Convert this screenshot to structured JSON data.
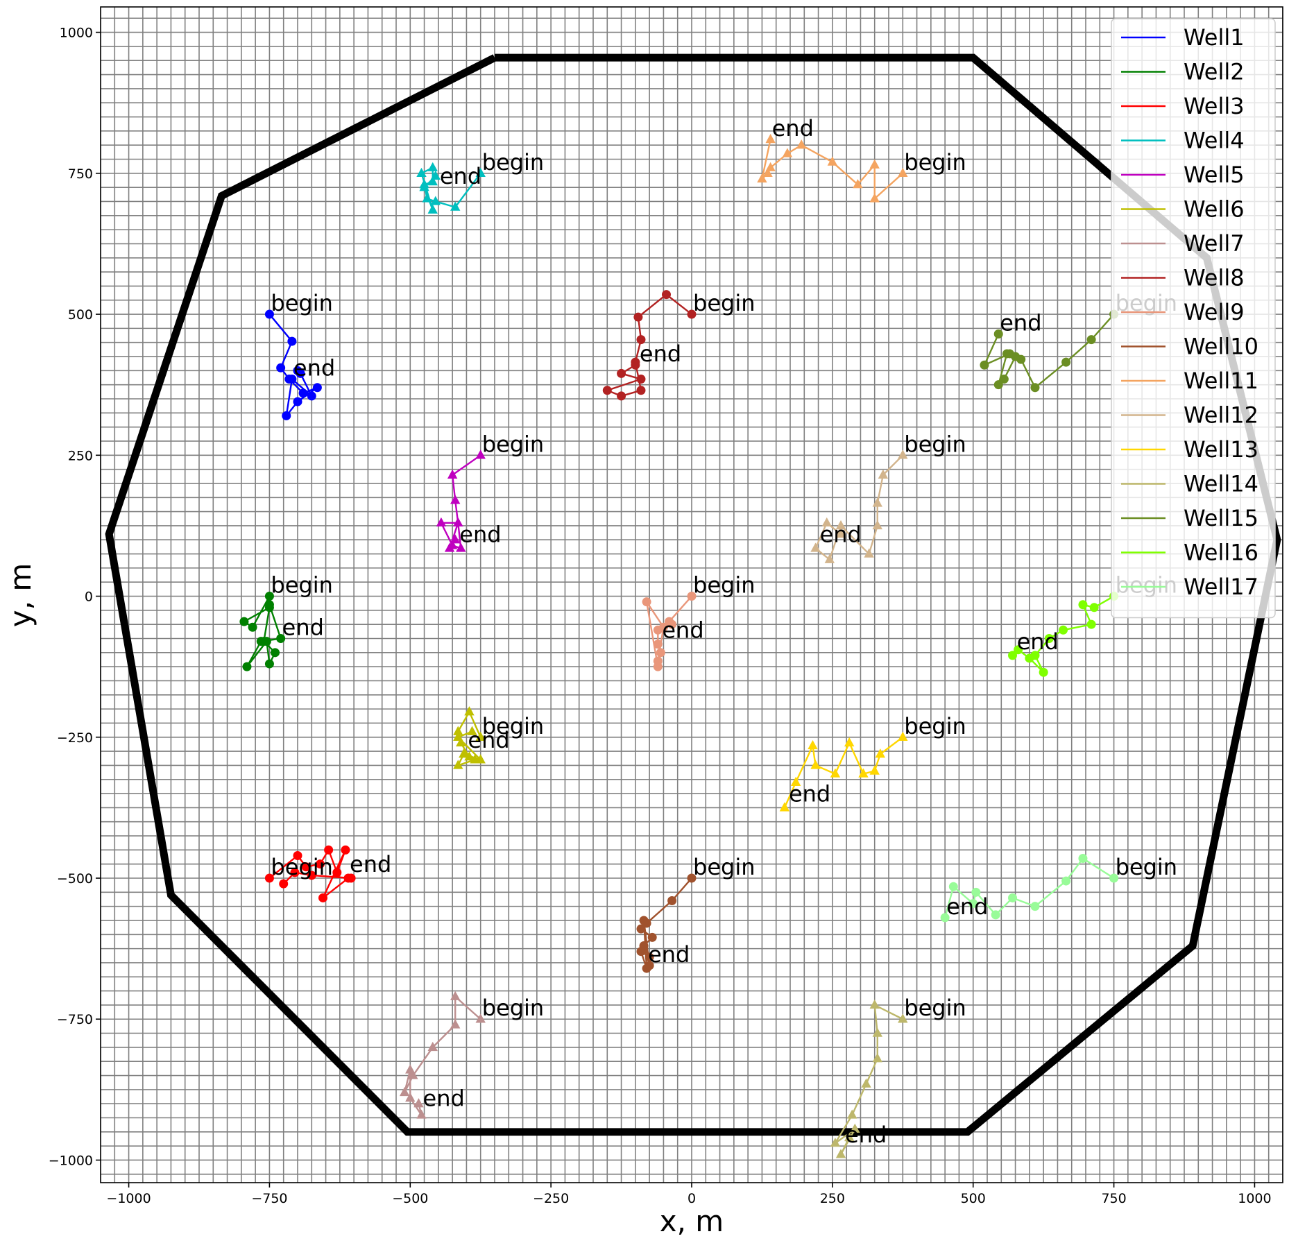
{
  "chart_data": {
    "type": "line",
    "title": "",
    "xlabel": "x, m",
    "ylabel": "y, m",
    "xlim": [
      -1050,
      1050
    ],
    "ylim": [
      -1040,
      1045
    ],
    "xticks": [
      -1000,
      -750,
      -500,
      -250,
      0,
      250,
      500,
      750,
      1000
    ],
    "yticks": [
      -1000,
      -750,
      -500,
      -250,
      0,
      250,
      500,
      750,
      1000
    ],
    "xtick_labels": [
      "−1000",
      "−750",
      "−500",
      "−250",
      "0",
      "250",
      "500",
      "750",
      "1000"
    ],
    "ytick_labels": [
      "−1000",
      "−750",
      "−500",
      "−250",
      "0",
      "250",
      "500",
      "750",
      "1000"
    ],
    "grid": true,
    "legend_position": "top-right",
    "boundary": {
      "color": "#000000",
      "x": [
        -350,
        500,
        915,
        1040,
        890,
        490,
        -505,
        -925,
        -1035,
        -835,
        -350
      ],
      "y": [
        955,
        955,
        600,
        100,
        -620,
        -950,
        -950,
        -530,
        110,
        710,
        955
      ]
    },
    "series": [
      {
        "name": "Well1",
        "color": "#0000ff",
        "marker": "circle",
        "x": [
          -750,
          -710,
          -730,
          -715,
          -690,
          -665,
          -700,
          -720,
          -710,
          -675,
          -695,
          -700
        ],
        "y": [
          500,
          452,
          405,
          385,
          360,
          370,
          345,
          320,
          385,
          355,
          395,
          400
        ],
        "begin_label": "begin",
        "end_label": "end",
        "begin_xy": [
          -750,
          500
        ],
        "end_xy": [
          -710,
          385
        ]
      },
      {
        "name": "Well2",
        "color": "#008000",
        "marker": "circle",
        "x": [
          -750,
          -780,
          -795,
          -750,
          -760,
          -740,
          -750,
          -755,
          -790,
          -765,
          -730,
          -750
        ],
        "y": [
          0,
          -55,
          -45,
          -20,
          -80,
          -100,
          -120,
          -80,
          -125,
          -80,
          -75,
          -15
        ],
        "begin_label": "begin",
        "end_label": "end",
        "begin_xy": [
          -750,
          0
        ],
        "end_xy": [
          -730,
          -75
        ]
      },
      {
        "name": "Well3",
        "color": "#ff0000",
        "marker": "circle",
        "x": [
          -750,
          -700,
          -685,
          -660,
          -645,
          -630,
          -615,
          -655,
          -610,
          -605,
          -675,
          -705,
          -725
        ],
        "y": [
          -500,
          -460,
          -480,
          -475,
          -450,
          -490,
          -450,
          -535,
          -500,
          -500,
          -495,
          -490,
          -510
        ],
        "begin_label": "begin",
        "end_label": "end",
        "begin_xy": [
          -750,
          -500
        ],
        "end_xy": [
          -610,
          -495
        ]
      },
      {
        "name": "Well4",
        "color": "#00bfbf",
        "marker": "triangle",
        "x": [
          -375,
          -420,
          -455,
          -470,
          -475,
          -460,
          -460,
          -480,
          -460,
          -475,
          -455
        ],
        "y": [
          750,
          690,
          700,
          705,
          730,
          735,
          760,
          750,
          685,
          725,
          745
        ],
        "begin_label": "begin",
        "end_label": "end",
        "begin_xy": [
          -375,
          750
        ],
        "end_xy": [
          -450,
          725
        ]
      },
      {
        "name": "Well5",
        "color": "#bf00bf",
        "marker": "triangle",
        "x": [
          -375,
          -425,
          -420,
          -415,
          -445,
          -425,
          -410,
          -415,
          -430,
          -420
        ],
        "y": [
          250,
          215,
          170,
          130,
          130,
          90,
          85,
          130,
          85,
          100
        ],
        "begin_label": "begin",
        "end_label": "end",
        "begin_xy": [
          -375,
          250
        ],
        "end_xy": [
          -415,
          90
        ]
      },
      {
        "name": "Well6",
        "color": "#bfbf00",
        "marker": "triangle",
        "x": [
          -375,
          -395,
          -415,
          -410,
          -395,
          -385,
          -415,
          -405,
          -375,
          -415,
          -390
        ],
        "y": [
          -250,
          -205,
          -240,
          -260,
          -285,
          -290,
          -300,
          -280,
          -290,
          -250,
          -240
        ],
        "begin_label": "begin",
        "end_label": "end",
        "begin_xy": [
          -375,
          -250
        ],
        "end_xy": [
          -400,
          -275
        ]
      },
      {
        "name": "Well7",
        "color": "#bc8f8f",
        "marker": "triangle",
        "x": [
          -375,
          -420,
          -420,
          -460,
          -495,
          -510,
          -500,
          -500,
          -480,
          -485
        ],
        "y": [
          -750,
          -710,
          -760,
          -800,
          -850,
          -880,
          -840,
          -890,
          -920,
          -900
        ],
        "begin_label": "begin",
        "end_label": "end",
        "begin_xy": [
          -375,
          -750
        ],
        "end_xy": [
          -480,
          -910
        ]
      },
      {
        "name": "Well8",
        "color": "#b22222",
        "marker": "circle",
        "x": [
          0,
          -45,
          -95,
          -90,
          -100,
          -90,
          -125,
          -150,
          -90,
          -125,
          -100
        ],
        "y": [
          500,
          535,
          495,
          455,
          415,
          365,
          355,
          365,
          385,
          395,
          410
        ],
        "begin_label": "begin",
        "end_label": "end",
        "begin_xy": [
          0,
          500
        ],
        "end_xy": [
          -95,
          410
        ]
      },
      {
        "name": "Well9",
        "color": "#e9967a",
        "marker": "circle",
        "x": [
          0,
          -40,
          -35,
          -60,
          -60,
          -55,
          -60,
          -80,
          -50,
          -60
        ],
        "y": [
          0,
          -45,
          -50,
          -60,
          -85,
          -100,
          -125,
          -10,
          -55,
          -115
        ],
        "begin_label": "begin",
        "end_label": "end",
        "begin_xy": [
          0,
          0
        ],
        "end_xy": [
          -55,
          -80
        ]
      },
      {
        "name": "Well10",
        "color": "#a0522d",
        "marker": "circle",
        "x": [
          0,
          -35,
          -80,
          -90,
          -70,
          -85,
          -75,
          -90,
          -80,
          -85,
          -75
        ],
        "y": [
          -500,
          -540,
          -580,
          -590,
          -605,
          -620,
          -640,
          -630,
          -660,
          -575,
          -655
        ],
        "begin_label": "begin",
        "end_label": "end",
        "begin_xy": [
          0,
          -500
        ],
        "end_xy": [
          -80,
          -655
        ]
      },
      {
        "name": "Well11",
        "color": "#f4a460",
        "marker": "triangle",
        "x": [
          375,
          325,
          325,
          295,
          250,
          195,
          170,
          140,
          135,
          125,
          140
        ],
        "y": [
          750,
          705,
          765,
          730,
          770,
          800,
          785,
          760,
          750,
          740,
          810
        ],
        "begin_label": "begin",
        "end_label": "end",
        "begin_xy": [
          375,
          750
        ],
        "end_xy": [
          140,
          810
        ]
      },
      {
        "name": "Well12",
        "color": "#d2b48c",
        "marker": "triangle",
        "x": [
          375,
          340,
          330,
          330,
          315,
          265,
          245,
          220,
          240,
          265
        ],
        "y": [
          250,
          215,
          165,
          125,
          75,
          125,
          65,
          85,
          130,
          110
        ],
        "begin_label": "begin",
        "end_label": "end",
        "begin_xy": [
          375,
          250
        ],
        "end_xy": [
          225,
          90
        ]
      },
      {
        "name": "Well13",
        "color": "#ffd700",
        "marker": "triangle",
        "x": [
          375,
          335,
          325,
          305,
          280,
          255,
          220,
          215,
          185,
          165
        ],
        "y": [
          -250,
          -280,
          -310,
          -315,
          -260,
          -315,
          -300,
          -265,
          -330,
          -375
        ],
        "begin_label": "begin",
        "end_label": "end",
        "begin_xy": [
          375,
          -250
        ],
        "end_xy": [
          170,
          -370
        ]
      },
      {
        "name": "Well14",
        "color": "#bdb76b",
        "marker": "triangle",
        "x": [
          375,
          325,
          330,
          330,
          310,
          285,
          255,
          290,
          265,
          280
        ],
        "y": [
          -750,
          -725,
          -775,
          -820,
          -865,
          -920,
          -970,
          -945,
          -990,
          -960
        ],
        "begin_label": "begin",
        "end_label": "end",
        "begin_xy": [
          375,
          -750
        ],
        "end_xy": [
          270,
          -975
        ]
      },
      {
        "name": "Well15",
        "color": "#6b8e23",
        "marker": "circle",
        "x": [
          750,
          710,
          665,
          610,
          585,
          560,
          545,
          555,
          575,
          565,
          520,
          545
        ],
        "y": [
          500,
          455,
          415,
          370,
          420,
          430,
          375,
          385,
          425,
          430,
          410,
          465
        ],
        "begin_label": "begin",
        "end_label": "end",
        "begin_xy": [
          750,
          500
        ],
        "end_xy": [
          545,
          465
        ]
      },
      {
        "name": "Well16",
        "color": "#7fff00",
        "marker": "circle",
        "x": [
          750,
          715,
          695,
          710,
          660,
          635,
          610,
          625,
          600,
          580,
          570
        ],
        "y": [
          0,
          -20,
          -15,
          -50,
          -60,
          -75,
          -105,
          -135,
          -110,
          -95,
          -105
        ],
        "begin_label": "begin",
        "end_label": "end",
        "begin_xy": [
          750,
          0
        ],
        "end_xy": [
          575,
          -100
        ]
      },
      {
        "name": "Well17",
        "color": "#98fb98",
        "marker": "circle",
        "x": [
          750,
          695,
          665,
          610,
          570,
          540,
          505,
          500,
          465,
          450
        ],
        "y": [
          -500,
          -465,
          -505,
          -550,
          -535,
          -565,
          -525,
          -545,
          -515,
          -570
        ],
        "begin_label": "begin",
        "end_label": "end",
        "begin_xy": [
          750,
          -500
        ],
        "end_xy": [
          450,
          -570
        ]
      }
    ]
  }
}
